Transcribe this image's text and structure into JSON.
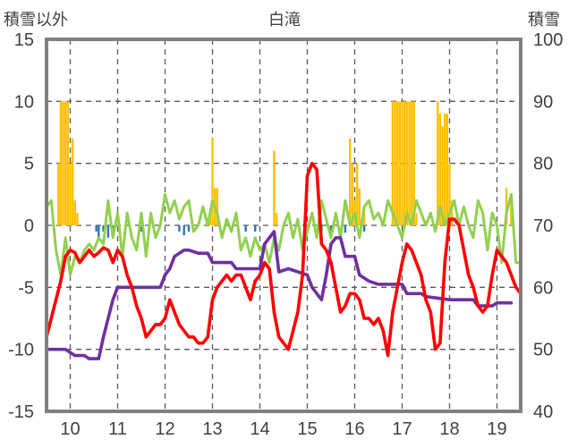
{
  "chart_data": {
    "type": "line",
    "title": "白滝",
    "ylabel_left": "積雪以外",
    "ylabel_right": "積雪",
    "xlim": [
      9.5,
      19.5
    ],
    "ylim_left": [
      -15,
      15
    ],
    "ylim_right": [
      40,
      100
    ],
    "x_ticks": [
      "10",
      "11",
      "12",
      "13",
      "14",
      "15",
      "16",
      "17",
      "18",
      "19"
    ],
    "y_ticks_left": [
      "15",
      "10",
      "5",
      "0",
      "-5",
      "-10",
      "-15"
    ],
    "y_ticks_right": [
      "100",
      "90",
      "80",
      "70",
      "60",
      "50",
      "40"
    ],
    "grid": true,
    "colors": {
      "red": "#ff0000",
      "purple": "#7030a0",
      "green": "#92d050",
      "orange": "#ffc000",
      "blue": "#2e75b6",
      "grid": "#595959",
      "frame": "#808080"
    },
    "series": [
      {
        "color": "red",
        "axis": "left",
        "points": [
          [
            9.5,
            -9
          ],
          [
            9.6,
            -7.5
          ],
          [
            9.7,
            -6
          ],
          [
            9.8,
            -4.5
          ],
          [
            9.9,
            -2.5
          ],
          [
            10.0,
            -2
          ],
          [
            10.1,
            -2.2
          ],
          [
            10.2,
            -3
          ],
          [
            10.3,
            -2.5
          ],
          [
            10.4,
            -2
          ],
          [
            10.5,
            -2.5
          ],
          [
            10.6,
            -2.2
          ],
          [
            10.7,
            -1.8
          ],
          [
            10.8,
            -2
          ],
          [
            10.9,
            -3
          ],
          [
            11.0,
            -2
          ],
          [
            11.1,
            -2.5
          ],
          [
            11.2,
            -4
          ],
          [
            11.3,
            -5
          ],
          [
            11.4,
            -6.5
          ],
          [
            11.5,
            -7.5
          ],
          [
            11.6,
            -9
          ],
          [
            11.7,
            -8.5
          ],
          [
            11.8,
            -8
          ],
          [
            11.9,
            -8
          ],
          [
            12.0,
            -7.5
          ],
          [
            12.1,
            -6
          ],
          [
            12.2,
            -7
          ],
          [
            12.3,
            -8
          ],
          [
            12.4,
            -8.5
          ],
          [
            12.5,
            -9
          ],
          [
            12.6,
            -9
          ],
          [
            12.7,
            -9.5
          ],
          [
            12.8,
            -9.5
          ],
          [
            12.9,
            -9
          ],
          [
            13.0,
            -6
          ],
          [
            13.1,
            -5
          ],
          [
            13.2,
            -4.5
          ],
          [
            13.3,
            -4
          ],
          [
            13.4,
            -4.5
          ],
          [
            13.5,
            -4
          ],
          [
            13.6,
            -4
          ],
          [
            13.7,
            -5
          ],
          [
            13.8,
            -6
          ],
          [
            13.9,
            -4.5
          ],
          [
            14.0,
            -4
          ],
          [
            14.1,
            -3
          ],
          [
            14.2,
            -3.5
          ],
          [
            14.3,
            -7
          ],
          [
            14.4,
            -9
          ],
          [
            14.5,
            -9.5
          ],
          [
            14.6,
            -10
          ],
          [
            14.7,
            -8.5
          ],
          [
            14.8,
            -7
          ],
          [
            14.9,
            -4
          ],
          [
            15.0,
            4
          ],
          [
            15.1,
            5
          ],
          [
            15.2,
            4.5
          ],
          [
            15.3,
            -1.5
          ],
          [
            15.4,
            -2
          ],
          [
            15.5,
            -3
          ],
          [
            15.6,
            -5
          ],
          [
            15.7,
            -7
          ],
          [
            15.8,
            -6.5
          ],
          [
            15.9,
            -5.5
          ],
          [
            16.0,
            -5.5
          ],
          [
            16.1,
            -6
          ],
          [
            16.2,
            -7.5
          ],
          [
            16.3,
            -7.5
          ],
          [
            16.4,
            -8
          ],
          [
            16.5,
            -7.5
          ],
          [
            16.6,
            -8.5
          ],
          [
            16.7,
            -10.5
          ],
          [
            16.8,
            -7
          ],
          [
            16.9,
            -5
          ],
          [
            17.0,
            -3
          ],
          [
            17.1,
            -1.5
          ],
          [
            17.2,
            -2
          ],
          [
            17.3,
            -3
          ],
          [
            17.4,
            -4
          ],
          [
            17.5,
            -6
          ],
          [
            17.6,
            -7
          ],
          [
            17.7,
            -10
          ],
          [
            17.8,
            -9.5
          ],
          [
            17.9,
            -3
          ],
          [
            18.0,
            0.5
          ],
          [
            18.1,
            0.5
          ],
          [
            18.2,
            0
          ],
          [
            18.3,
            -2
          ],
          [
            18.4,
            -4
          ],
          [
            18.5,
            -5
          ],
          [
            18.6,
            -6.5
          ],
          [
            18.7,
            -7
          ],
          [
            18.8,
            -6.5
          ],
          [
            18.9,
            -4
          ],
          [
            19.0,
            -2
          ],
          [
            19.1,
            -2.5
          ],
          [
            19.2,
            -3
          ],
          [
            19.3,
            -4
          ],
          [
            19.4,
            -5
          ],
          [
            19.5,
            -5.5
          ]
        ]
      },
      {
        "color": "purple",
        "axis": "right",
        "points": [
          [
            9.5,
            50
          ],
          [
            9.9,
            50
          ],
          [
            10.1,
            49
          ],
          [
            10.3,
            49
          ],
          [
            10.4,
            48.5
          ],
          [
            10.6,
            48.5
          ],
          [
            10.7,
            52
          ],
          [
            10.9,
            58
          ],
          [
            11.0,
            60
          ],
          [
            11.5,
            60
          ],
          [
            11.6,
            60
          ],
          [
            11.8,
            60
          ],
          [
            11.9,
            60
          ],
          [
            12.0,
            62
          ],
          [
            12.1,
            63
          ],
          [
            12.2,
            65
          ],
          [
            12.3,
            65.5
          ],
          [
            12.4,
            66
          ],
          [
            12.5,
            66
          ],
          [
            12.7,
            65.5
          ],
          [
            12.9,
            65.5
          ],
          [
            13.0,
            64
          ],
          [
            13.4,
            64
          ],
          [
            13.5,
            63
          ],
          [
            14.0,
            63
          ],
          [
            14.1,
            67
          ],
          [
            14.2,
            68
          ],
          [
            14.3,
            69
          ],
          [
            14.4,
            62.5
          ],
          [
            14.6,
            63
          ],
          [
            15.0,
            62
          ],
          [
            15.1,
            60
          ],
          [
            15.2,
            59
          ],
          [
            15.3,
            58
          ],
          [
            15.4,
            62
          ],
          [
            15.5,
            67
          ],
          [
            15.6,
            68
          ],
          [
            15.7,
            68
          ],
          [
            15.8,
            65
          ],
          [
            16.0,
            65
          ],
          [
            16.1,
            62
          ],
          [
            16.3,
            61
          ],
          [
            16.5,
            60.5
          ],
          [
            17.0,
            60.5
          ],
          [
            17.1,
            59
          ],
          [
            17.4,
            59
          ],
          [
            17.5,
            58.5
          ],
          [
            18.0,
            58
          ],
          [
            18.5,
            58
          ],
          [
            18.6,
            57
          ],
          [
            18.9,
            57
          ],
          [
            19.0,
            57.5
          ],
          [
            19.3,
            57.5
          ]
        ]
      },
      {
        "color": "green",
        "axis": "left",
        "points": [
          [
            9.5,
            1.5
          ],
          [
            9.6,
            2
          ],
          [
            9.7,
            -2
          ],
          [
            9.8,
            -4
          ],
          [
            9.9,
            -1
          ],
          [
            10.0,
            -4
          ],
          [
            10.1,
            -2.5
          ],
          [
            10.2,
            -3
          ],
          [
            10.3,
            -2
          ],
          [
            10.4,
            -1.5
          ],
          [
            10.5,
            -2
          ],
          [
            10.6,
            -1
          ],
          [
            10.7,
            -1.5
          ],
          [
            10.8,
            2
          ],
          [
            10.9,
            -1
          ],
          [
            11.0,
            1
          ],
          [
            11.1,
            -2.5
          ],
          [
            11.2,
            1
          ],
          [
            11.3,
            -1
          ],
          [
            11.4,
            -2
          ],
          [
            11.5,
            1
          ],
          [
            11.6,
            -2.5
          ],
          [
            11.7,
            1
          ],
          [
            11.8,
            -1
          ],
          [
            11.9,
            0
          ],
          [
            12.0,
            2.5
          ],
          [
            12.1,
            1
          ],
          [
            12.2,
            2
          ],
          [
            12.3,
            0.5
          ],
          [
            12.4,
            1.5
          ],
          [
            12.5,
            2
          ],
          [
            12.6,
            -0.5
          ],
          [
            12.7,
            0
          ],
          [
            12.8,
            1.5
          ],
          [
            12.9,
            0
          ],
          [
            13.0,
            2
          ],
          [
            13.1,
            1
          ],
          [
            13.2,
            -1
          ],
          [
            13.3,
            0.5
          ],
          [
            13.4,
            -0.5
          ],
          [
            13.5,
            1
          ],
          [
            13.6,
            -2
          ],
          [
            13.7,
            -1
          ],
          [
            13.8,
            -2.5
          ],
          [
            13.9,
            -1
          ],
          [
            14.0,
            -2
          ],
          [
            14.1,
            -1.5
          ],
          [
            14.2,
            -3
          ],
          [
            14.3,
            -1
          ],
          [
            14.4,
            -2
          ],
          [
            14.5,
            0
          ],
          [
            14.6,
            1
          ],
          [
            14.7,
            -1
          ],
          [
            14.8,
            0.5
          ],
          [
            14.9,
            -2
          ],
          [
            15.0,
            -0.5
          ],
          [
            15.1,
            1
          ],
          [
            15.2,
            -1
          ],
          [
            15.3,
            2
          ],
          [
            15.4,
            0.5
          ],
          [
            15.5,
            -1
          ],
          [
            15.6,
            1
          ],
          [
            15.7,
            -1
          ],
          [
            15.8,
            2
          ],
          [
            15.9,
            0
          ],
          [
            16.0,
            1
          ],
          [
            16.1,
            -1
          ],
          [
            16.2,
            1.5
          ],
          [
            16.3,
            2
          ],
          [
            16.4,
            0.5
          ],
          [
            16.5,
            1
          ],
          [
            16.6,
            0
          ],
          [
            16.7,
            2
          ],
          [
            16.8,
            1
          ],
          [
            16.9,
            0
          ],
          [
            17.0,
            -1
          ],
          [
            17.1,
            1
          ],
          [
            17.2,
            0
          ],
          [
            17.3,
            2
          ],
          [
            17.4,
            1
          ],
          [
            17.5,
            0
          ],
          [
            17.6,
            1
          ],
          [
            17.7,
            -0.5
          ],
          [
            17.8,
            1.5
          ],
          [
            17.9,
            0
          ],
          [
            18.0,
            1
          ],
          [
            18.1,
            2
          ],
          [
            18.2,
            0
          ],
          [
            18.3,
            1.5
          ],
          [
            18.4,
            0
          ],
          [
            18.5,
            -1
          ],
          [
            18.6,
            2
          ],
          [
            18.7,
            1
          ],
          [
            18.8,
            -2
          ],
          [
            18.9,
            1
          ],
          [
            19.0,
            0
          ],
          [
            19.1,
            -3
          ],
          [
            19.2,
            1
          ],
          [
            19.3,
            2.5
          ],
          [
            19.4,
            -3
          ],
          [
            19.5,
            -3
          ]
        ]
      }
    ],
    "bars": {
      "color": "orange",
      "axis": "left",
      "points": [
        [
          9.75,
          5
        ],
        [
          9.8,
          10
        ],
        [
          9.85,
          10
        ],
        [
          9.9,
          10
        ],
        [
          9.95,
          10
        ],
        [
          10.0,
          5
        ],
        [
          10.05,
          7
        ],
        [
          10.1,
          2
        ],
        [
          10.15,
          1
        ],
        [
          12.95,
          1
        ],
        [
          13.0,
          7
        ],
        [
          13.05,
          3
        ],
        [
          13.1,
          3
        ],
        [
          14.3,
          6
        ],
        [
          14.35,
          1
        ],
        [
          15.9,
          7
        ],
        [
          15.95,
          5
        ],
        [
          16.0,
          2
        ],
        [
          16.05,
          5
        ],
        [
          16.1,
          3
        ],
        [
          16.2,
          1
        ],
        [
          16.8,
          10
        ],
        [
          16.85,
          10
        ],
        [
          16.9,
          10
        ],
        [
          16.95,
          10
        ],
        [
          17.0,
          10
        ],
        [
          17.05,
          10
        ],
        [
          17.1,
          10
        ],
        [
          17.15,
          10
        ],
        [
          17.2,
          10
        ],
        [
          17.25,
          10
        ],
        [
          17.3,
          1
        ],
        [
          17.75,
          10
        ],
        [
          17.8,
          9
        ],
        [
          17.85,
          8
        ],
        [
          17.9,
          9
        ],
        [
          17.95,
          9
        ],
        [
          18.0,
          5
        ],
        [
          18.05,
          2
        ],
        [
          19.2,
          3
        ],
        [
          19.3,
          2.5
        ]
      ]
    },
    "neg_bars": {
      "color": "blue",
      "axis": "left",
      "points": [
        [
          10.55,
          -0.5
        ],
        [
          10.6,
          -1
        ],
        [
          10.7,
          -0.5
        ],
        [
          10.8,
          -1
        ],
        [
          10.9,
          -0.5
        ],
        [
          11.5,
          -0.5
        ],
        [
          12.3,
          -0.5
        ],
        [
          12.4,
          -0.8
        ],
        [
          12.5,
          -0.5
        ],
        [
          13.7,
          -0.5
        ],
        [
          13.9,
          -0.5
        ],
        [
          15.3,
          -0.5
        ],
        [
          15.5,
          -0.5
        ],
        [
          15.8,
          -0.6
        ],
        [
          16.2,
          -0.5
        ]
      ]
    }
  }
}
